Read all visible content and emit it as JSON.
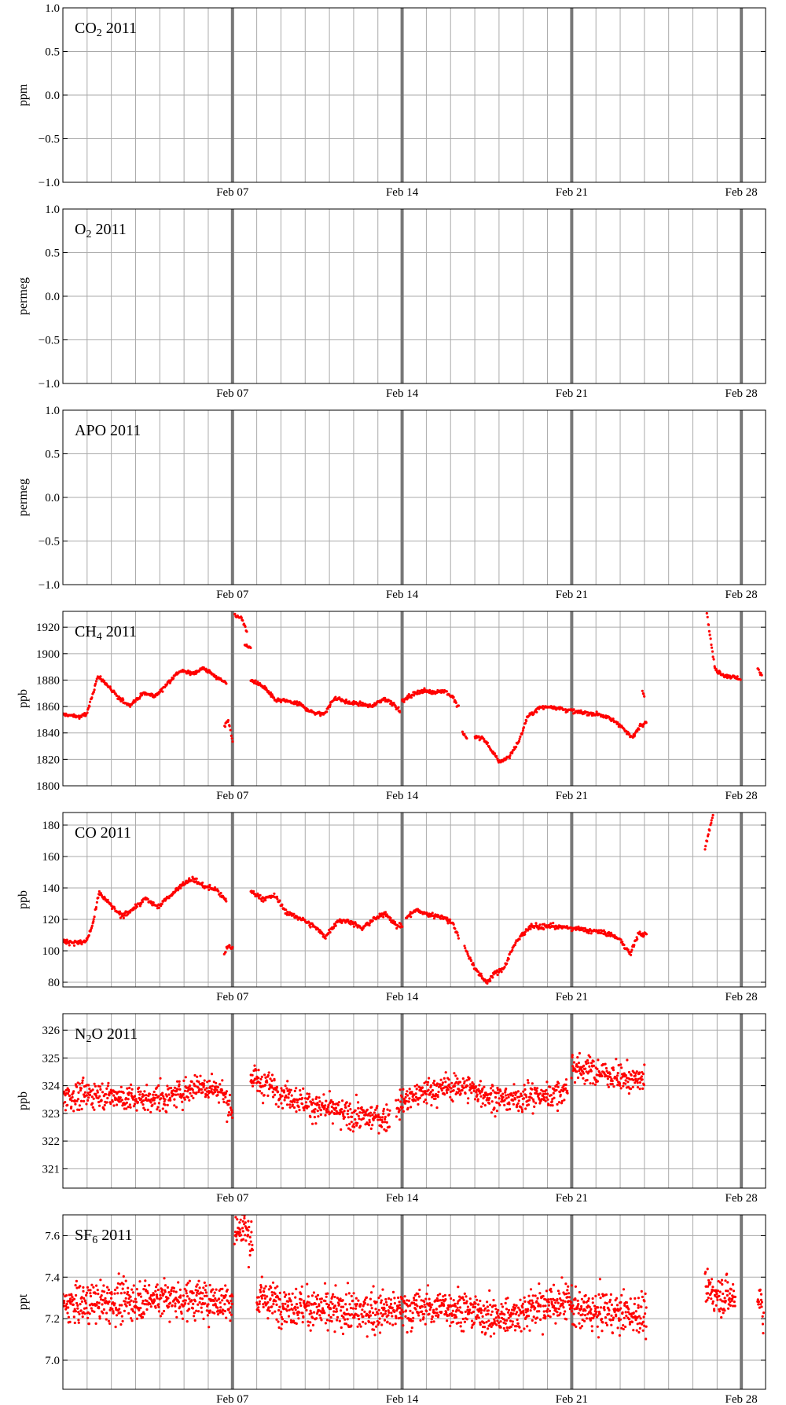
{
  "chart_data": [
    {
      "type": "scatter",
      "title": "CO2 2011",
      "title_main": "CO",
      "title_sub": "2",
      "title_rest": " 2011",
      "ylabel": "ppm",
      "ylim": [
        -1.0,
        1.0
      ],
      "yticks": [
        -1.0,
        -0.5,
        0.0,
        0.5,
        1.0
      ],
      "ytick_labels": [
        "−1.0",
        "−0.5",
        "0.0",
        "0.5",
        "1.0"
      ],
      "xlim": [
        "2011-01-31",
        "2011-03-01"
      ],
      "xticks": [
        {
          "date": "2011-02-07",
          "label": "Feb 07"
        },
        {
          "date": "2011-02-14",
          "label": "Feb 14"
        },
        {
          "date": "2011-02-21",
          "label": "Feb 21"
        },
        {
          "date": "2011-02-28",
          "label": "Feb 28"
        }
      ],
      "grid": true,
      "segments": []
    },
    {
      "type": "scatter",
      "title": "O2 2011",
      "title_main": "O",
      "title_sub": "2",
      "title_rest": " 2011",
      "ylabel": "permeg",
      "ylim": [
        -1.0,
        1.0
      ],
      "yticks": [
        -1.0,
        -0.5,
        0.0,
        0.5,
        1.0
      ],
      "ytick_labels": [
        "−1.0",
        "−0.5",
        "0.0",
        "0.5",
        "1.0"
      ],
      "xlim": [
        "2011-01-31",
        "2011-03-01"
      ],
      "xticks": [
        {
          "date": "2011-02-07",
          "label": "Feb 07"
        },
        {
          "date": "2011-02-14",
          "label": "Feb 14"
        },
        {
          "date": "2011-02-21",
          "label": "Feb 21"
        },
        {
          "date": "2011-02-28",
          "label": "Feb 28"
        }
      ],
      "grid": true,
      "segments": []
    },
    {
      "type": "scatter",
      "title": "APO 2011",
      "title_main": "APO",
      "title_sub": "",
      "title_rest": " 2011",
      "ylabel": "permeg",
      "ylim": [
        -1.0,
        1.0
      ],
      "yticks": [
        -1.0,
        -0.5,
        0.0,
        0.5,
        1.0
      ],
      "ytick_labels": [
        "−1.0",
        "−0.5",
        "0.0",
        "0.5",
        "1.0"
      ],
      "xlim": [
        "2011-01-31",
        "2011-03-01"
      ],
      "xticks": [
        {
          "date": "2011-02-07",
          "label": "Feb 07"
        },
        {
          "date": "2011-02-14",
          "label": "Feb 14"
        },
        {
          "date": "2011-02-21",
          "label": "Feb 21"
        },
        {
          "date": "2011-02-28",
          "label": "Feb 28"
        }
      ],
      "grid": true,
      "segments": []
    },
    {
      "type": "scatter",
      "title": "CH4 2011",
      "title_main": "CH",
      "title_sub": "4",
      "title_rest": " 2011",
      "ylabel": "ppb",
      "ylim": [
        1800,
        1932
      ],
      "yticks": [
        1800,
        1820,
        1840,
        1860,
        1880,
        1900,
        1920
      ],
      "ytick_labels": [
        "1800",
        "1820",
        "1840",
        "1860",
        "1880",
        "1900",
        "1920"
      ],
      "xlim": [
        "2011-01-31",
        "2011-03-01"
      ],
      "xticks": [
        {
          "date": "2011-02-07",
          "label": "Feb 07"
        },
        {
          "date": "2011-02-14",
          "label": "Feb 14"
        },
        {
          "date": "2011-02-21",
          "label": "Feb 21"
        },
        {
          "date": "2011-02-28",
          "label": "Feb 28"
        }
      ],
      "grid": true,
      "marker_color": "#ff0000",
      "noise": 1.4,
      "density": 40,
      "segments": [
        {
          "x": [
            "2011-01-31 00:00",
            "2011-01-31 18:00",
            "2011-02-01 00:00",
            "2011-02-01 06:00",
            "2011-02-01 10:00",
            "2011-02-01 18:00",
            "2011-02-02 06:00",
            "2011-02-02 18:00",
            "2011-02-03 08:00",
            "2011-02-03 20:00",
            "2011-02-04 08:00",
            "2011-02-04 20:00",
            "2011-02-05 08:00",
            "2011-02-05 20:00",
            "2011-02-06 12:00",
            "2011-02-06 18:00"
          ],
          "y": [
            1854,
            1852,
            1855,
            1870,
            1883,
            1878,
            1867,
            1861,
            1870,
            1868,
            1878,
            1887,
            1885,
            1889,
            1880,
            1878
          ]
        },
        {
          "x": [
            "2011-02-06 16:00",
            "2011-02-06 20:00",
            "2011-02-07 00:00"
          ],
          "y": [
            1845,
            1850,
            1833
          ]
        },
        {
          "x": [
            "2011-02-07 02:00",
            "2011-02-07 10:00",
            "2011-02-07 14:00"
          ],
          "y": [
            1930,
            1926,
            1916
          ]
        },
        {
          "x": [
            "2011-02-07 12:00",
            "2011-02-07 18:00"
          ],
          "y": [
            1907,
            1904
          ]
        },
        {
          "x": [
            "2011-02-07 18:00",
            "2011-02-08 00:00",
            "2011-02-08 08:00",
            "2011-02-08 18:00",
            "2011-02-09 06:00",
            "2011-02-09 18:00",
            "2011-02-10 06:00",
            "2011-02-10 18:00",
            "2011-02-11 06:00",
            "2011-02-11 18:00",
            "2011-02-12 06:00",
            "2011-02-12 18:00",
            "2011-02-13 06:00",
            "2011-02-13 16:00",
            "2011-02-13 22:00"
          ],
          "y": [
            1880,
            1878,
            1874,
            1865,
            1864,
            1862,
            1856,
            1854,
            1867,
            1863,
            1862,
            1860,
            1866,
            1862,
            1856
          ]
        },
        {
          "x": [
            "2011-02-14 00:00",
            "2011-02-14 08:00",
            "2011-02-14 18:00",
            "2011-02-15 06:00",
            "2011-02-15 18:00",
            "2011-02-16 02:00",
            "2011-02-16 08:00"
          ],
          "y": [
            1864,
            1868,
            1872,
            1871,
            1872,
            1867,
            1859
          ]
        },
        {
          "x": [
            "2011-02-16 12:00",
            "2011-02-16 16:00"
          ],
          "y": [
            1840,
            1836
          ]
        },
        {
          "x": [
            "2011-02-17 00:00",
            "2011-02-17 08:00",
            "2011-02-17 14:00",
            "2011-02-18 00:00",
            "2011-02-18 10:00",
            "2011-02-18 20:00",
            "2011-02-19 04:00",
            "2011-02-19 16:00",
            "2011-02-20 04:00",
            "2011-02-20 16:00",
            "2011-02-21 04:00",
            "2011-02-21 16:00",
            "2011-02-22 04:00",
            "2011-02-22 16:00",
            "2011-02-23 00:00",
            "2011-02-23 12:00",
            "2011-02-23 20:00",
            "2011-02-24 02:00"
          ],
          "y": [
            1837,
            1836,
            1830,
            1818,
            1822,
            1834,
            1852,
            1859,
            1860,
            1858,
            1856,
            1855,
            1854,
            1850,
            1846,
            1836,
            1846,
            1849
          ]
        },
        {
          "x": [
            "2011-02-23 22:00",
            "2011-02-24 00:00"
          ],
          "y": [
            1871,
            1869
          ]
        },
        {
          "x": [
            "2011-02-26 14:00",
            "2011-02-26 18:00",
            "2011-02-26 22:00",
            "2011-02-27 06:00",
            "2011-02-27 18:00",
            "2011-02-27 23:00"
          ],
          "y": [
            1930,
            1908,
            1888,
            1884,
            1882,
            1881
          ]
        },
        {
          "x": [
            "2011-02-28 16:00",
            "2011-02-28 20:00"
          ],
          "y": [
            1889,
            1884
          ]
        }
      ]
    },
    {
      "type": "scatter",
      "title": "CO 2011",
      "title_main": "CO",
      "title_sub": "",
      "title_rest": " 2011",
      "ylabel": "ppb",
      "ylim": [
        77,
        188
      ],
      "yticks": [
        80,
        100,
        120,
        140,
        160,
        180
      ],
      "ytick_labels": [
        "80",
        "100",
        "120",
        "140",
        "160",
        "180"
      ],
      "xlim": [
        "2011-01-31",
        "2011-03-01"
      ],
      "xticks": [
        {
          "date": "2011-02-07",
          "label": "Feb 07"
        },
        {
          "date": "2011-02-14",
          "label": "Feb 14"
        },
        {
          "date": "2011-02-21",
          "label": "Feb 21"
        },
        {
          "date": "2011-02-28",
          "label": "Feb 28"
        }
      ],
      "grid": true,
      "marker_color": "#ff0000",
      "noise": 1.4,
      "density": 40,
      "segments": [
        {
          "x": [
            "2011-01-31 00:00",
            "2011-01-31 18:00",
            "2011-02-01 00:00",
            "2011-02-01 06:00",
            "2011-02-01 12:00",
            "2011-02-01 22:00",
            "2011-02-02 10:00",
            "2011-02-02 20:00",
            "2011-02-03 10:00",
            "2011-02-03 22:00",
            "2011-02-04 10:00",
            "2011-02-04 22:00",
            "2011-02-05 08:00",
            "2011-02-05 20:00",
            "2011-02-06 08:00",
            "2011-02-06 18:00"
          ],
          "y": [
            106,
            105,
            107,
            118,
            137,
            130,
            122,
            126,
            133,
            128,
            135,
            142,
            146,
            141,
            139,
            131
          ]
        },
        {
          "x": [
            "2011-02-06 16:00",
            "2011-02-06 20:00",
            "2011-02-07 00:00"
          ],
          "y": [
            98,
            104,
            101
          ]
        },
        {
          "x": [
            "2011-02-07 18:00",
            "2011-02-08 06:00",
            "2011-02-08 18:00",
            "2011-02-09 06:00",
            "2011-02-09 18:00",
            "2011-02-10 08:00",
            "2011-02-10 20:00",
            "2011-02-11 08:00",
            "2011-02-11 20:00",
            "2011-02-12 08:00",
            "2011-02-12 20:00",
            "2011-02-13 08:00",
            "2011-02-13 18:00",
            "2011-02-14 00:00"
          ],
          "y": [
            138,
            133,
            135,
            124,
            121,
            116,
            109,
            119,
            119,
            114,
            120,
            124,
            116,
            116
          ]
        },
        {
          "x": [
            "2011-02-14 04:00",
            "2011-02-14 14:00",
            "2011-02-15 02:00",
            "2011-02-15 14:00",
            "2011-02-16 02:00",
            "2011-02-16 08:00"
          ],
          "y": [
            121,
            126,
            123,
            122,
            118,
            109
          ]
        },
        {
          "x": [
            "2011-02-16 14:00",
            "2011-02-16 20:00",
            "2011-02-17 04:00",
            "2011-02-17 12:00",
            "2011-02-17 20:00",
            "2011-02-18 04:00",
            "2011-02-18 12:00",
            "2011-02-18 22:00",
            "2011-02-19 08:00",
            "2011-02-19 18:00",
            "2011-02-20 04:00",
            "2011-02-20 16:00",
            "2011-02-21 04:00",
            "2011-02-21 16:00",
            "2011-02-22 04:00",
            "2011-02-22 16:00",
            "2011-02-23 00:00",
            "2011-02-23 10:00",
            "2011-02-23 18:00",
            "2011-02-24 02:00"
          ],
          "y": [
            102,
            94,
            85,
            80,
            86,
            88,
            100,
            110,
            116,
            115,
            116,
            115,
            114,
            113,
            112,
            110,
            107,
            98,
            111,
            110
          ]
        },
        {
          "x": [
            "2011-02-26 12:00",
            "2011-02-26 16:00",
            "2011-02-26 20:00"
          ],
          "y": [
            165,
            176,
            186
          ]
        }
      ]
    },
    {
      "type": "scatter",
      "title": "N2O 2011",
      "title_main": "N",
      "title_sub": "2",
      "title_rest": "O 2011",
      "ylabel": "ppb",
      "ylim": [
        320.3,
        326.6
      ],
      "yticks": [
        321,
        322,
        323,
        324,
        325,
        326
      ],
      "ytick_labels": [
        "321",
        "322",
        "323",
        "324",
        "325",
        "326"
      ],
      "xlim": [
        "2011-01-31",
        "2011-03-01"
      ],
      "xticks": [
        {
          "date": "2011-02-07",
          "label": "Feb 07"
        },
        {
          "date": "2011-02-14",
          "label": "Feb 14"
        },
        {
          "date": "2011-02-21",
          "label": "Feb 21"
        },
        {
          "date": "2011-02-28",
          "label": "Feb 28"
        }
      ],
      "grid": true,
      "marker_color": "#ff0000",
      "noise": 0.45,
      "density": 60,
      "segments": [
        {
          "x": [
            "2011-01-31 00:00",
            "2011-02-01 12:00",
            "2011-02-03 00:00",
            "2011-02-04 12:00",
            "2011-02-05 12:00",
            "2011-02-06 12:00",
            "2011-02-07 00:00"
          ],
          "y": [
            323.6,
            323.7,
            323.5,
            323.6,
            324.0,
            323.9,
            323.0
          ]
        },
        {
          "x": [
            "2011-02-07 18:00",
            "2011-02-09 00:00",
            "2011-02-10 12:00",
            "2011-02-12 00:00",
            "2011-02-13 12:00"
          ],
          "y": [
            324.3,
            323.8,
            323.2,
            322.9,
            322.8
          ]
        },
        {
          "x": [
            "2011-02-13 18:00",
            "2011-02-15 00:00",
            "2011-02-16 12:00",
            "2011-02-18 00:00",
            "2011-02-19 12:00",
            "2011-02-20 20:00"
          ],
          "y": [
            323.3,
            323.8,
            324.0,
            323.5,
            323.6,
            323.8
          ]
        },
        {
          "x": [
            "2011-02-21 00:00",
            "2011-02-22 00:00",
            "2011-02-23 00:00",
            "2011-02-24 00:00"
          ],
          "y": [
            324.7,
            324.5,
            324.3,
            324.2
          ]
        }
      ]
    },
    {
      "type": "scatter",
      "title": "SF6 2011",
      "title_main": "SF",
      "title_sub": "6",
      "title_rest": " 2011",
      "ylabel": "ppt",
      "ylim": [
        6.86,
        7.7
      ],
      "yticks": [
        7.0,
        7.2,
        7.4,
        7.6
      ],
      "ytick_labels": [
        "7.0",
        "7.2",
        "7.4",
        "7.6"
      ],
      "xlim": [
        "2011-01-31",
        "2011-03-01"
      ],
      "xticks": [
        {
          "date": "2011-02-07",
          "label": "Feb 07"
        },
        {
          "date": "2011-02-14",
          "label": "Feb 14"
        },
        {
          "date": "2011-02-21",
          "label": "Feb 21"
        },
        {
          "date": "2011-02-28",
          "label": "Feb 28"
        }
      ],
      "grid": true,
      "marker_color": "#ff0000",
      "noise": 0.085,
      "density": 70,
      "segments": [
        {
          "x": [
            "2011-01-31 00:00",
            "2011-02-02 00:00",
            "2011-02-04 00:00",
            "2011-02-07 00:00"
          ],
          "y": [
            7.27,
            7.28,
            7.3,
            7.28
          ]
        },
        {
          "x": [
            "2011-02-07 02:00",
            "2011-02-07 12:00",
            "2011-02-07 20:00"
          ],
          "y": [
            7.62,
            7.64,
            7.55
          ]
        },
        {
          "x": [
            "2011-02-08 00:00",
            "2011-02-10 00:00",
            "2011-02-12 00:00",
            "2011-02-14 00:00",
            "2011-02-16 00:00",
            "2011-02-18 00:00",
            "2011-02-20 00:00",
            "2011-02-21 00:00"
          ],
          "y": [
            7.3,
            7.25,
            7.23,
            7.24,
            7.26,
            7.2,
            7.27,
            7.28
          ]
        },
        {
          "x": [
            "2011-02-21 00:00",
            "2011-02-22 12:00",
            "2011-02-24 02:00"
          ],
          "y": [
            7.24,
            7.23,
            7.22
          ]
        },
        {
          "x": [
            "2011-02-26 12:00",
            "2011-02-27 00:00",
            "2011-02-27 18:00"
          ],
          "y": [
            7.33,
            7.32,
            7.3
          ]
        },
        {
          "x": [
            "2011-02-28 16:00",
            "2011-02-28 22:00"
          ],
          "y": [
            7.32,
            7.24
          ]
        }
      ]
    }
  ]
}
